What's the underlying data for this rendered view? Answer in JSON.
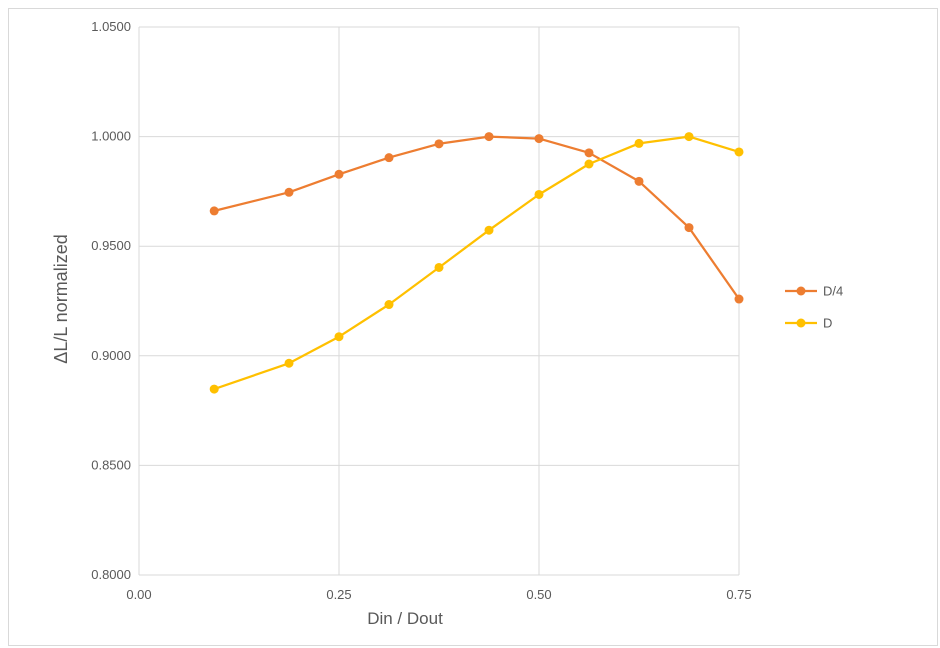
{
  "chart_data": {
    "type": "line",
    "title": "",
    "xlabel": "Din / Dout",
    "ylabel": "ΔL/L normalized",
    "xlim": [
      0,
      0.75
    ],
    "ylim": [
      0.8,
      1.05
    ],
    "x_ticks": [
      "0.00",
      "0.25",
      "0.50",
      "0.75"
    ],
    "y_ticks": [
      "0.8000",
      "0.8500",
      "0.9000",
      "0.9500",
      "1.0000",
      "1.0500"
    ],
    "grid": true,
    "legend_position": "right",
    "series": [
      {
        "name": "D/4",
        "color": "#ED7D31",
        "x": [
          0.094,
          0.1875,
          0.25,
          0.3125,
          0.375,
          0.4375,
          0.5,
          0.5625,
          0.625,
          0.6875,
          0.75
        ],
        "y": [
          0.9661,
          0.9746,
          0.9828,
          0.9904,
          0.9967,
          1.0,
          0.9991,
          0.9926,
          0.9796,
          0.9585,
          0.9259
        ]
      },
      {
        "name": "D",
        "color": "#FFC000",
        "x": [
          0.094,
          0.1875,
          0.25,
          0.3125,
          0.375,
          0.4375,
          0.5,
          0.5625,
          0.625,
          0.6875,
          0.75
        ],
        "y": [
          0.8848,
          0.8966,
          0.9087,
          0.9234,
          0.9403,
          0.9573,
          0.9736,
          0.9875,
          0.9969,
          1.0,
          0.993
        ]
      }
    ]
  }
}
